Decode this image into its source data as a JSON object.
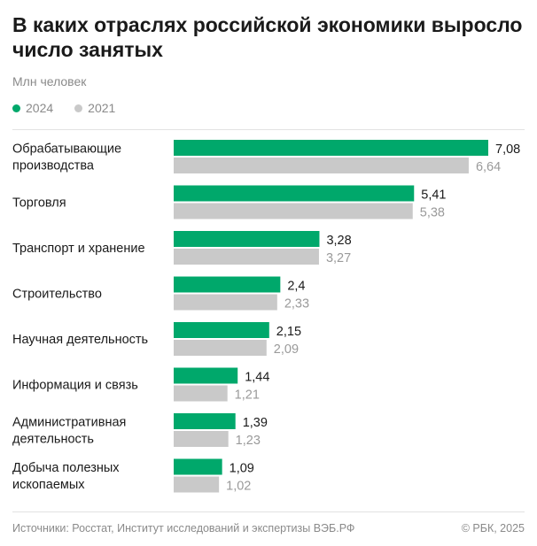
{
  "title": "В каких отраслях российской экономики выросло число занятых",
  "subtitle": "Млн человек",
  "legend": [
    {
      "label": "2024",
      "color": "#00a86b"
    },
    {
      "label": "2021",
      "color": "#c9c9c9"
    }
  ],
  "chart_data": {
    "type": "bar",
    "orientation": "horizontal",
    "unit": "Млн человек",
    "categories": [
      "Обрабатывающие производства",
      "Торговля",
      "Транспорт и хранение",
      "Строительство",
      "Научная деятельность",
      "Информация и связь",
      "Административная деятельность",
      "Добыча полезных ископаемых"
    ],
    "category_lines": [
      [
        "Обрабатывающие",
        "производства"
      ],
      [
        "Торговля"
      ],
      [
        "Транспорт и хранение"
      ],
      [
        "Строительство"
      ],
      [
        "Научная деятельность"
      ],
      [
        "Информация и связь"
      ],
      [
        "Административная",
        "деятельность"
      ],
      [
        "Добыча полезных",
        "ископаемых"
      ]
    ],
    "series": [
      {
        "name": "2024",
        "color": "#00a86b",
        "values": [
          7.08,
          5.41,
          3.28,
          2.4,
          2.15,
          1.44,
          1.39,
          1.09
        ],
        "labels": [
          "7,08",
          "5,41",
          "3,28",
          "2,4",
          "2,15",
          "1,44",
          "1,39",
          "1,09"
        ]
      },
      {
        "name": "2021",
        "color": "#c9c9c9",
        "values": [
          6.64,
          5.38,
          3.27,
          2.33,
          2.09,
          1.21,
          1.23,
          1.02
        ],
        "labels": [
          "6,64",
          "5,38",
          "3,27",
          "2,33",
          "2,09",
          "1,21",
          "1,23",
          "1,02"
        ]
      }
    ],
    "xlim": [
      0,
      7.08
    ],
    "grid": false,
    "legend_position": "top-left"
  },
  "footer": {
    "source": "Источники: Росстат, Институт исследований и экспертизы ВЭБ.РФ",
    "copyright": "© РБК, 2025"
  }
}
